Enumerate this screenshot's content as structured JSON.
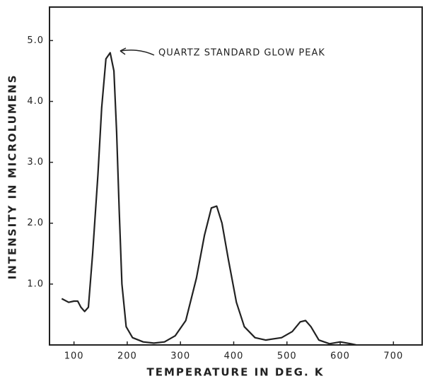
{
  "chart_data": {
    "type": "line",
    "annotation": "QUARTZ STANDARD GLOW PEAK",
    "xlabel": "TEMPERATURE IN DEG. K",
    "ylabel": "INTENSITY IN MICROLUMENS",
    "xlim": [
      54,
      754
    ],
    "ylim": [
      0,
      5.55
    ],
    "xticks": [
      100,
      200,
      300,
      400,
      500,
      600,
      700
    ],
    "yticks": [
      {
        "value": 1,
        "label": "1.0"
      },
      {
        "value": 2,
        "label": "2.0"
      },
      {
        "value": 3,
        "label": "3.0"
      },
      {
        "value": 4,
        "label": "4.0"
      },
      {
        "value": 5,
        "label": "5.0"
      }
    ],
    "color": "#222222",
    "x": [
      77,
      90,
      100,
      107,
      113,
      120,
      127,
      135,
      145,
      152,
      160,
      168,
      175,
      180,
      185,
      190,
      198,
      210,
      230,
      250,
      270,
      290,
      310,
      330,
      345,
      358,
      368,
      378,
      390,
      405,
      420,
      440,
      460,
      490,
      510,
      525,
      535,
      545,
      560,
      580,
      600,
      620,
      630
    ],
    "values": [
      0.76,
      0.7,
      0.72,
      0.72,
      0.62,
      0.55,
      0.62,
      1.5,
      2.8,
      3.9,
      4.7,
      4.8,
      4.5,
      3.5,
      2.2,
      1.0,
      0.3,
      0.12,
      0.05,
      0.03,
      0.05,
      0.15,
      0.4,
      1.1,
      1.8,
      2.25,
      2.28,
      2.0,
      1.4,
      0.7,
      0.3,
      0.12,
      0.08,
      0.12,
      0.22,
      0.38,
      0.4,
      0.3,
      0.08,
      0.02,
      0.05,
      0.02,
      0
    ]
  }
}
